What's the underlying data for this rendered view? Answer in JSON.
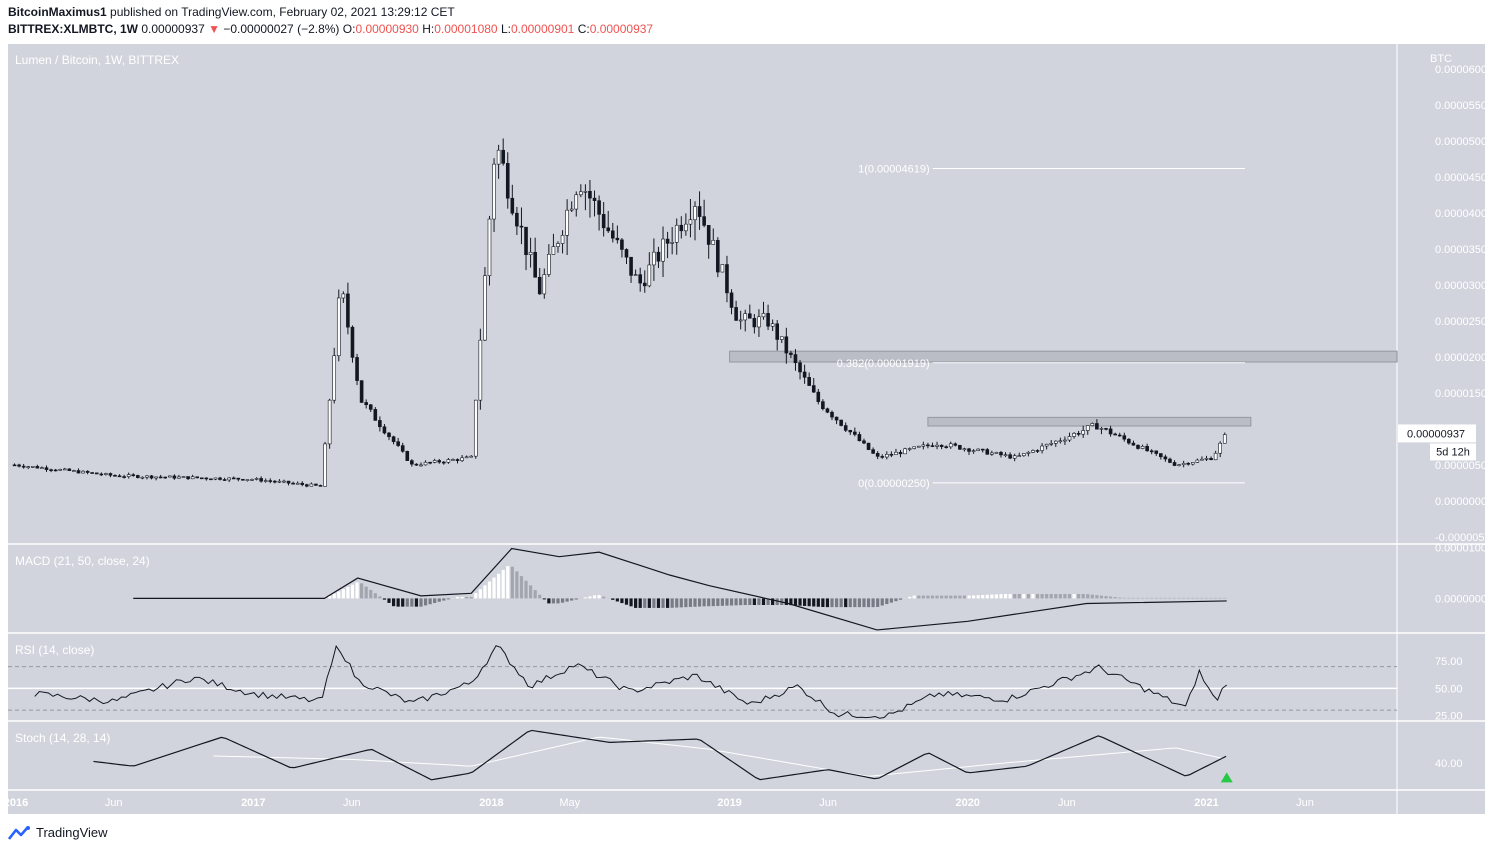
{
  "header": {
    "author": "BitcoinMaximus1",
    "published": "published on TradingView.com, February 02, 2021 13:29:12 CET",
    "symbol": "BITTREX:XLMBTC, 1W",
    "last": "0.00000937",
    "change": "−0.00000027 (−2.8%)",
    "o_label": "O:",
    "o_value": "0.00000930",
    "h_label": "H:",
    "h_value": "0.00001080",
    "l_label": "L:",
    "l_value": "0.00000901",
    "c_label": "C:",
    "c_value": "0.00000937"
  },
  "footer": {
    "brand": "TradingView"
  },
  "colors": {
    "background": "#d1d4dc",
    "candle": "#131722",
    "axis_text": "#ffffff",
    "signal": "#ffffff",
    "arrow": "#26c845"
  },
  "chart_data": [
    {
      "type": "candlestick",
      "title": "Lumen / Bitcoin, 1W, BITTREX",
      "currency_label": "BTC",
      "ylim": [
        -6e-06,
        6.35e-05
      ],
      "y_ticks": [
        "0.00006000",
        "0.00005500",
        "0.00005000",
        "0.00004500",
        "0.00004000",
        "0.00003500",
        "0.00003000",
        "0.00002500",
        "0.00002000",
        "0.00001500",
        "0.00000500",
        "0.00000000",
        "-0.00000500"
      ],
      "y_tick_values": [
        6e-05,
        5.5e-05,
        5e-05,
        4.5e-05,
        4e-05,
        3.5e-05,
        3e-05,
        2.5e-05,
        2e-05,
        1.5e-05,
        5e-06,
        0,
        -5e-06
      ],
      "x_ticks": [
        "2016",
        "Jun",
        "2017",
        "Jun",
        "2018",
        "May",
        "2019",
        "Jun",
        "2020",
        "Jun",
        "2021",
        "Jun"
      ],
      "x_tick_dates": [
        "2016-01-01",
        "2016-06-01",
        "2017-01-01",
        "2017-06-01",
        "2018-01-01",
        "2018-05-01",
        "2019-01-01",
        "2019-06-01",
        "2020-01-01",
        "2020-06-01",
        "2021-01-01",
        "2021-06-01"
      ],
      "x_range": [
        "2015-12-22",
        "2021-10-20"
      ],
      "price_label": "0.00000937",
      "countdown_label": "5d 12h",
      "fib_levels": [
        {
          "label": "1(0.00004619)",
          "value": 4.619e-05,
          "from": "2019-07-01",
          "to": "2021-03-01"
        },
        {
          "label": "0.382(0.00001919)",
          "value": 1.919e-05,
          "from": "2019-07-01",
          "to": "2021-03-01"
        },
        {
          "label": "0(0.00000250)",
          "value": 2.5e-06,
          "from": "2019-07-01",
          "to": "2021-03-01"
        }
      ],
      "zones": [
        {
          "from": "2019-01-01",
          "to": "2021-10-20",
          "low": 1.93e-05,
          "high": 2.08e-05
        },
        {
          "from": "2019-11-01",
          "to": "2021-03-10",
          "low": 1.04e-05,
          "high": 1.16e-05
        }
      ],
      "series_key_points": [
        {
          "x": "2016-01-01",
          "y": 5e-06
        },
        {
          "x": "2016-06-01",
          "y": 3.5e-06
        },
        {
          "x": "2017-01-01",
          "y": 3e-06
        },
        {
          "x": "2017-04-15",
          "y": 2e-06
        },
        {
          "x": "2017-05-15",
          "y": 3e-05
        },
        {
          "x": "2017-06-15",
          "y": 1.4e-05
        },
        {
          "x": "2017-09-01",
          "y": 5e-06
        },
        {
          "x": "2017-12-01",
          "y": 6e-06
        },
        {
          "x": "2018-01-07",
          "y": 5e-05
        },
        {
          "x": "2018-03-15",
          "y": 2.9e-05
        },
        {
          "x": "2018-05-15",
          "y": 4.5e-05
        },
        {
          "x": "2018-08-15",
          "y": 3e-05
        },
        {
          "x": "2018-11-10",
          "y": 4.2e-05
        },
        {
          "x": "2019-01-15",
          "y": 2.5e-05
        },
        {
          "x": "2019-03-01",
          "y": 2.5e-05
        },
        {
          "x": "2019-05-15",
          "y": 1.4e-05
        },
        {
          "x": "2019-08-15",
          "y": 6e-06
        },
        {
          "x": "2019-11-15",
          "y": 8e-06
        },
        {
          "x": "2020-03-15",
          "y": 6e-06
        },
        {
          "x": "2020-07-15",
          "y": 1.05e-05
        },
        {
          "x": "2020-11-15",
          "y": 5e-06
        },
        {
          "x": "2021-01-10",
          "y": 6e-06
        },
        {
          "x": "2021-02-01",
          "y": 9.37e-06
        }
      ]
    },
    {
      "type": "line+histogram",
      "title": "MACD (21, 50, close, 24)",
      "y_ticks": [
        "0.00001000",
        "0.00000000"
      ],
      "y_tick_values": [
        1e-05,
        0
      ],
      "ylim": [
        -6.8e-06,
        1.05e-05
      ],
      "macd_key_points": [
        {
          "x": "2016-07-01",
          "y": 0
        },
        {
          "x": "2017-04-20",
          "y": 0
        },
        {
          "x": "2017-06-10",
          "y": 4e-06
        },
        {
          "x": "2017-09-15",
          "y": 5e-07
        },
        {
          "x": "2017-12-01",
          "y": 1e-06
        },
        {
          "x": "2018-02-01",
          "y": 9.8e-06
        },
        {
          "x": "2018-04-15",
          "y": 8.2e-06
        },
        {
          "x": "2018-06-15",
          "y": 9.1e-06
        },
        {
          "x": "2018-10-01",
          "y": 4.6e-06
        },
        {
          "x": "2018-12-01",
          "y": 2.5e-06
        },
        {
          "x": "2019-04-01",
          "y": -1e-06
        },
        {
          "x": "2019-08-15",
          "y": -6.2e-06
        },
        {
          "x": "2020-01-01",
          "y": -4.5e-06
        },
        {
          "x": "2020-07-01",
          "y": -1e-06
        },
        {
          "x": "2021-02-01",
          "y": -5e-07
        }
      ]
    },
    {
      "type": "line",
      "title": "RSI (14, close)",
      "y_ticks": [
        "75.00",
        "50.00",
        "25.00"
      ],
      "y_tick_values": [
        75,
        50,
        25
      ],
      "ylim": [
        20,
        100
      ],
      "bands": [
        70,
        50,
        30
      ],
      "key_points": [
        {
          "x": "2016-02-01",
          "y": 45
        },
        {
          "x": "2016-06-01",
          "y": 38
        },
        {
          "x": "2016-10-01",
          "y": 60
        },
        {
          "x": "2017-01-01",
          "y": 45
        },
        {
          "x": "2017-04-15",
          "y": 38
        },
        {
          "x": "2017-05-10",
          "y": 91
        },
        {
          "x": "2017-06-10",
          "y": 57
        },
        {
          "x": "2017-09-01",
          "y": 36
        },
        {
          "x": "2017-12-01",
          "y": 55
        },
        {
          "x": "2018-01-10",
          "y": 89
        },
        {
          "x": "2018-03-01",
          "y": 52
        },
        {
          "x": "2018-05-10",
          "y": 72
        },
        {
          "x": "2018-08-01",
          "y": 47
        },
        {
          "x": "2018-11-10",
          "y": 62
        },
        {
          "x": "2019-02-01",
          "y": 35
        },
        {
          "x": "2019-04-15",
          "y": 52
        },
        {
          "x": "2019-06-15",
          "y": 26
        },
        {
          "x": "2019-09-01",
          "y": 25
        },
        {
          "x": "2019-11-15",
          "y": 45
        },
        {
          "x": "2020-03-01",
          "y": 40
        },
        {
          "x": "2020-07-20",
          "y": 69
        },
        {
          "x": "2020-12-01",
          "y": 32
        },
        {
          "x": "2020-12-20",
          "y": 66
        },
        {
          "x": "2021-01-15",
          "y": 38
        },
        {
          "x": "2021-02-01",
          "y": 56
        }
      ]
    },
    {
      "type": "line",
      "title": "Stoch (14, 28, 14)",
      "y_ticks": [
        "40.00"
      ],
      "y_tick_values": [
        40
      ],
      "ylim": [
        0,
        100
      ],
      "k_key_points": [
        {
          "x": "2016-05-01",
          "y": 42
        },
        {
          "x": "2016-07-01",
          "y": 35
        },
        {
          "x": "2016-11-15",
          "y": 78
        },
        {
          "x": "2017-03-01",
          "y": 32
        },
        {
          "x": "2017-07-01",
          "y": 60
        },
        {
          "x": "2017-10-01",
          "y": 15
        },
        {
          "x": "2017-12-01",
          "y": 25
        },
        {
          "x": "2018-03-01",
          "y": 88
        },
        {
          "x": "2018-07-01",
          "y": 70
        },
        {
          "x": "2018-11-15",
          "y": 75
        },
        {
          "x": "2019-02-15",
          "y": 15
        },
        {
          "x": "2019-06-01",
          "y": 30
        },
        {
          "x": "2019-08-15",
          "y": 16
        },
        {
          "x": "2019-11-01",
          "y": 55
        },
        {
          "x": "2020-01-01",
          "y": 25
        },
        {
          "x": "2020-04-01",
          "y": 35
        },
        {
          "x": "2020-07-20",
          "y": 80
        },
        {
          "x": "2020-12-01",
          "y": 20
        },
        {
          "x": "2021-02-01",
          "y": 50
        }
      ],
      "d_key_points": [
        {
          "x": "2016-11-01",
          "y": 50
        },
        {
          "x": "2017-06-01",
          "y": 45
        },
        {
          "x": "2017-12-01",
          "y": 35
        },
        {
          "x": "2018-06-15",
          "y": 78
        },
        {
          "x": "2018-12-01",
          "y": 60
        },
        {
          "x": "2019-08-01",
          "y": 20
        },
        {
          "x": "2020-03-01",
          "y": 40
        },
        {
          "x": "2020-11-15",
          "y": 62
        },
        {
          "x": "2021-02-01",
          "y": 45
        }
      ],
      "signal": "buy-arrow"
    }
  ]
}
